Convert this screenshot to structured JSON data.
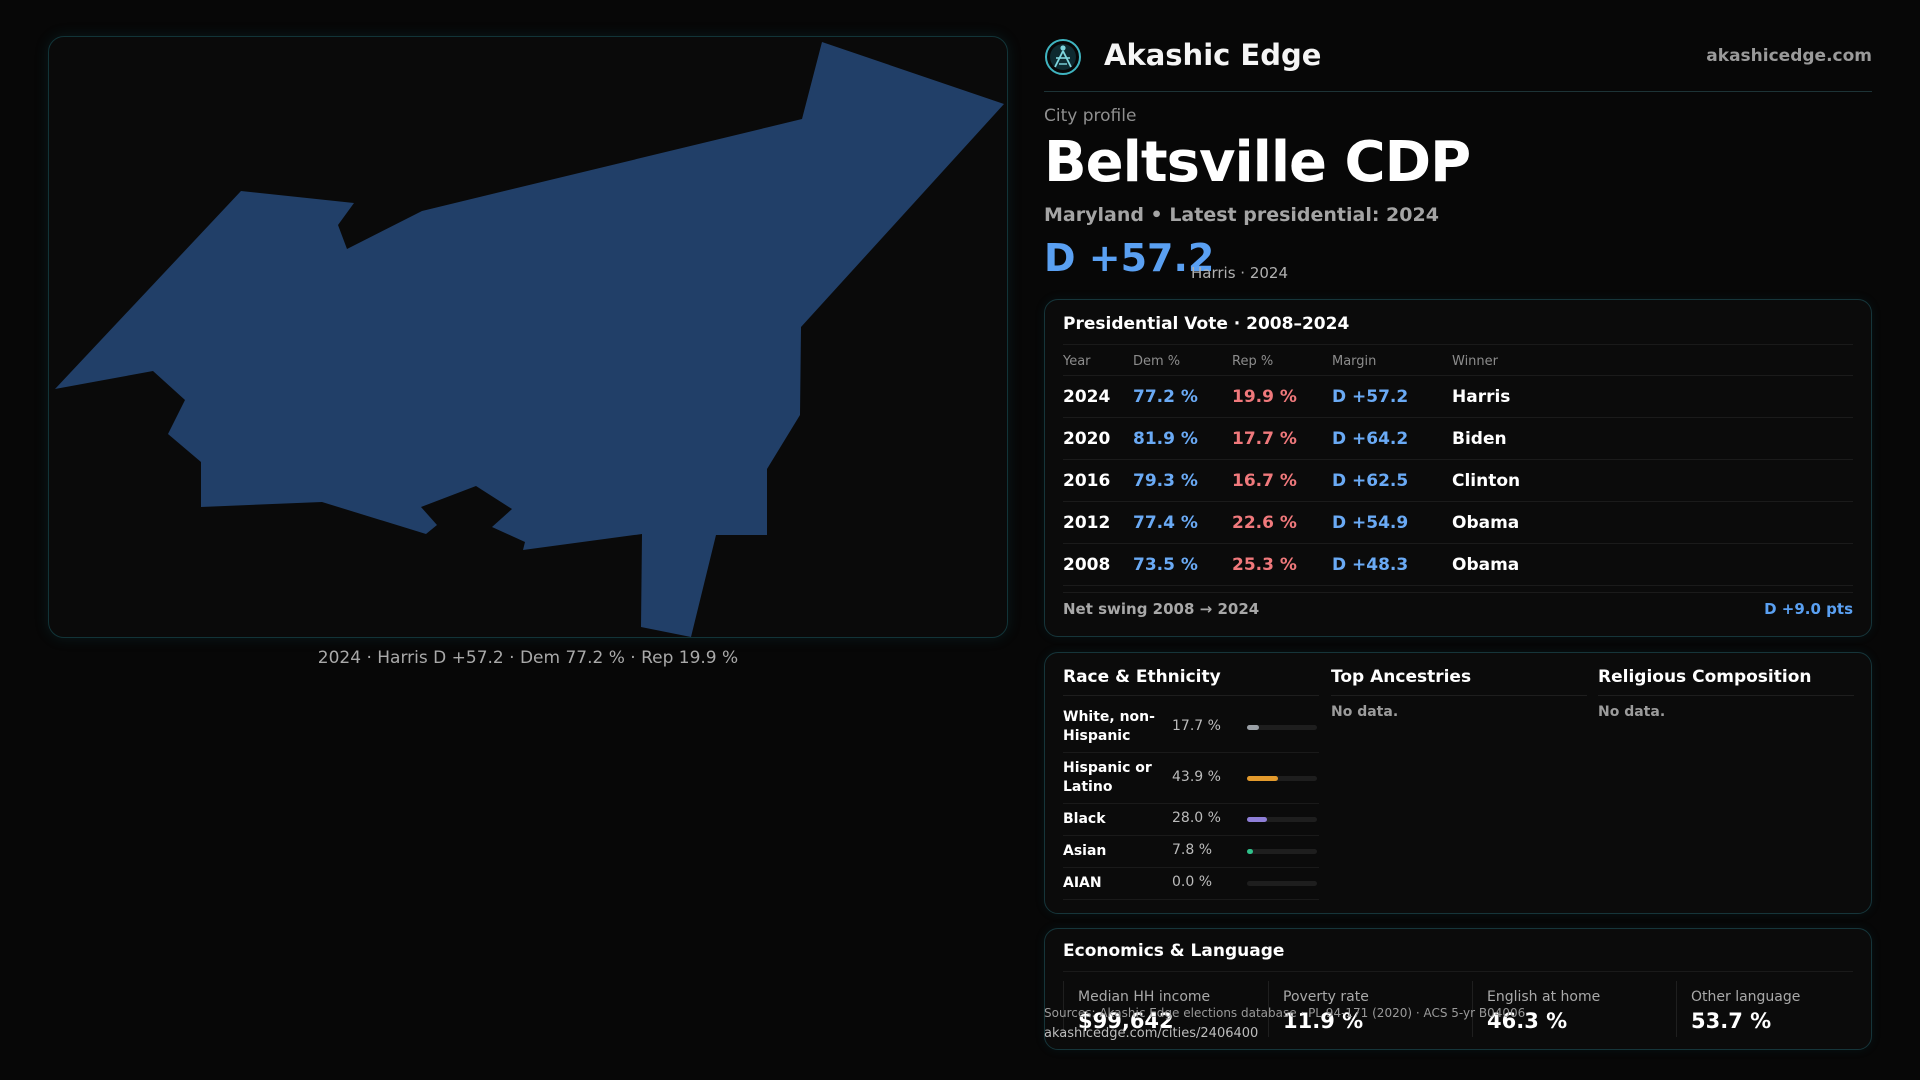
{
  "brand": {
    "name": "Akashic Edge",
    "site": "akashicedge.com"
  },
  "profile": {
    "kicker": "City profile",
    "title": "Beltsville CDP",
    "subtitle": "Maryland • Latest presidential: 2024",
    "margin": "D +57.2",
    "margin_note": "Harris · 2024"
  },
  "map": {
    "caption": "2024 · Harris D +57.2 · Dem 77.2 % · Rep 19.9 %",
    "fill_color": "#213f68"
  },
  "vote": {
    "title": "Presidential Vote · 2008–2024",
    "headers": {
      "year": "Year",
      "dem": "Dem %",
      "rep": "Rep %",
      "margin": "Margin",
      "winner": "Winner"
    },
    "rows": [
      {
        "year": "2024",
        "dem": "77.2 %",
        "rep": "19.9 %",
        "margin": "D +57.2",
        "winner": "Harris"
      },
      {
        "year": "2020",
        "dem": "81.9 %",
        "rep": "17.7 %",
        "margin": "D +64.2",
        "winner": "Biden"
      },
      {
        "year": "2016",
        "dem": "79.3 %",
        "rep": "16.7 %",
        "margin": "D +62.5",
        "winner": "Clinton"
      },
      {
        "year": "2012",
        "dem": "77.4 %",
        "rep": "22.6 %",
        "margin": "D +54.9",
        "winner": "Obama"
      },
      {
        "year": "2008",
        "dem": "73.5 %",
        "rep": "25.3 %",
        "margin": "D +48.3",
        "winner": "Obama"
      }
    ],
    "swing_label": "Net swing 2008 → 2024",
    "swing_value": "D +9.0 pts"
  },
  "race": {
    "title": "Race & Ethnicity",
    "items": [
      {
        "label": "White, non-Hispanic",
        "pct": "17.7 %",
        "value": 17.7,
        "color": "#9aa0a6"
      },
      {
        "label": "Hispanic or Latino",
        "pct": "43.9 %",
        "value": 43.9,
        "color": "#e39a2c"
      },
      {
        "label": "Black",
        "pct": "28.0 %",
        "value": 28.0,
        "color": "#8f7fd8"
      },
      {
        "label": "Asian",
        "pct": "7.8 %",
        "value": 7.8,
        "color": "#2fc08a"
      },
      {
        "label": "AIAN",
        "pct": "0.0 %",
        "value": 0.0,
        "color": "#888888"
      }
    ]
  },
  "ancestries": {
    "title": "Top Ancestries",
    "empty": "No data."
  },
  "religion": {
    "title": "Religious Composition",
    "empty": "No data."
  },
  "economics": {
    "title": "Economics & Language",
    "stats": [
      {
        "label": "Median HH income",
        "value": "$99,642"
      },
      {
        "label": "Poverty rate",
        "value": "11.9 %"
      },
      {
        "label": "English at home",
        "value": "46.3 %"
      },
      {
        "label": "Other language",
        "value": "53.7 %"
      }
    ]
  },
  "footer": {
    "source": "Sources: Akashic Edge elections database · PL 94-171 (2020) · ACS 5-yr B04006",
    "url": "akashicedge.com/cities/2406400"
  }
}
